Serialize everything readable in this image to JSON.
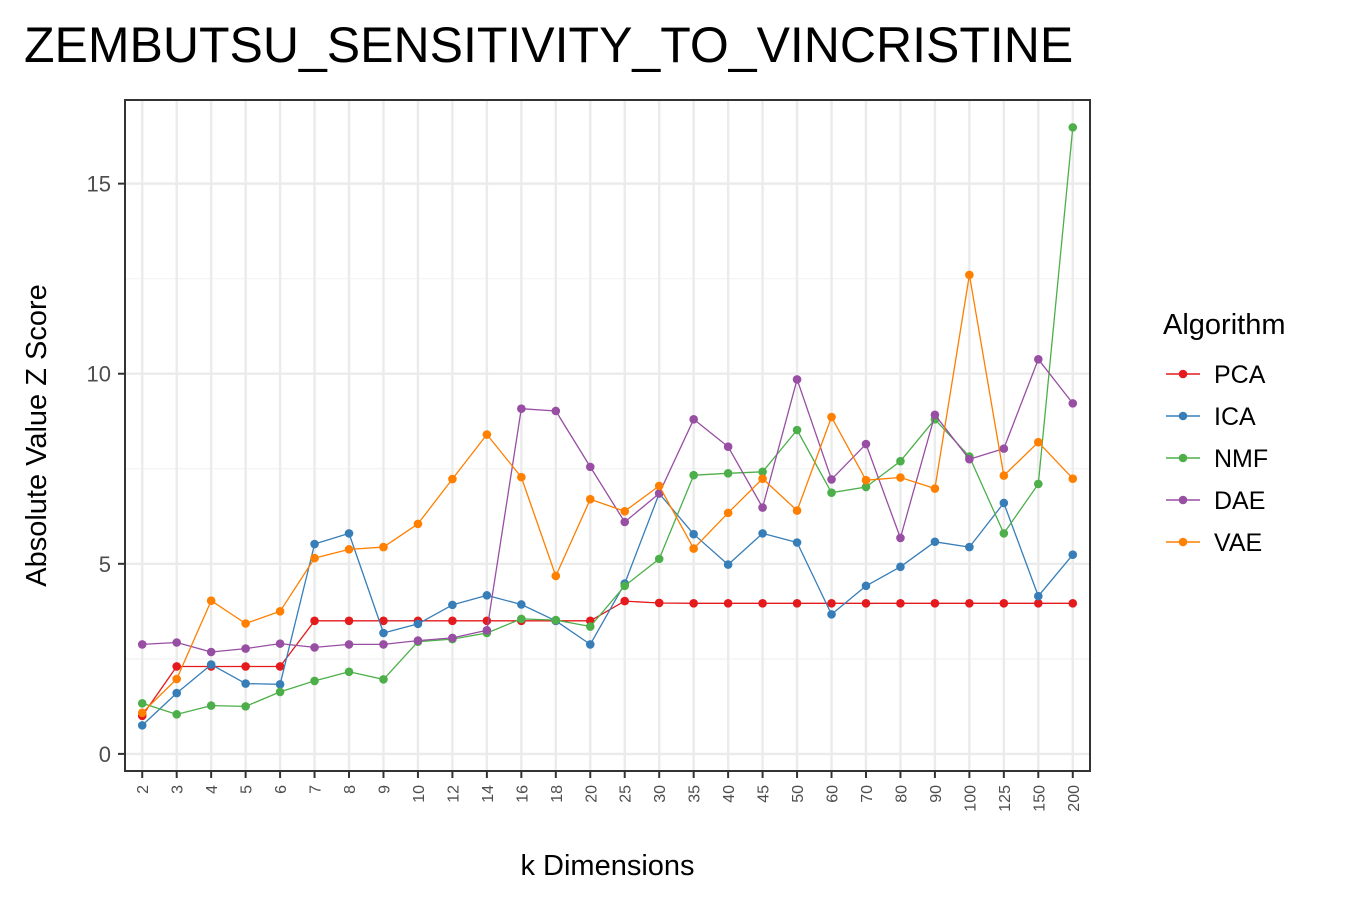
{
  "chart_data": {
    "type": "line",
    "title": "ZEMBUTSU_SENSITIVITY_TO_VINCRISTINE",
    "xlabel": "k Dimensions",
    "ylabel": "Absolute Value Z Score",
    "categories": [
      "2",
      "3",
      "4",
      "5",
      "6",
      "7",
      "8",
      "9",
      "10",
      "12",
      "14",
      "16",
      "18",
      "20",
      "25",
      "30",
      "35",
      "40",
      "45",
      "50",
      "60",
      "70",
      "80",
      "90",
      "100",
      "125",
      "150",
      "200"
    ],
    "ylim": [
      -0.45,
      17.2
    ],
    "yticks": [
      0,
      5,
      10,
      15
    ],
    "grid": true,
    "legend": {
      "title": "Algorithm",
      "position": "right"
    },
    "series": [
      {
        "name": "PCA",
        "color": "#e41a1c",
        "values": [
          1.0,
          2.3,
          2.3,
          2.3,
          2.3,
          3.5,
          3.5,
          3.5,
          3.5,
          3.5,
          3.5,
          3.5,
          3.5,
          3.5,
          4.02,
          3.97,
          3.96,
          3.96,
          3.96,
          3.96,
          3.96,
          3.96,
          3.96,
          3.96,
          3.96,
          3.96,
          3.96,
          3.96
        ]
      },
      {
        "name": "ICA",
        "color": "#377eb8",
        "values": [
          0.75,
          1.6,
          2.35,
          1.85,
          1.83,
          5.52,
          5.8,
          3.18,
          3.42,
          3.92,
          4.17,
          3.93,
          3.5,
          2.88,
          4.48,
          6.85,
          5.78,
          4.98,
          5.8,
          5.56,
          3.67,
          4.42,
          4.92,
          5.58,
          5.44,
          6.6,
          4.15,
          5.24
        ]
      },
      {
        "name": "NMF",
        "color": "#4daf4a",
        "values": [
          1.33,
          1.04,
          1.27,
          1.25,
          1.63,
          1.92,
          2.16,
          1.96,
          2.95,
          3.02,
          3.18,
          3.55,
          3.52,
          3.35,
          4.42,
          5.13,
          7.33,
          7.38,
          7.42,
          8.52,
          6.87,
          7.02,
          7.7,
          8.8,
          7.82,
          5.8,
          7.1,
          16.48
        ]
      },
      {
        "name": "DAE",
        "color": "#984ea3",
        "values": [
          2.88,
          2.93,
          2.68,
          2.77,
          2.9,
          2.8,
          2.88,
          2.88,
          2.98,
          3.05,
          3.25,
          9.08,
          9.02,
          7.55,
          6.1,
          6.85,
          8.8,
          8.08,
          6.48,
          9.85,
          7.22,
          8.15,
          5.68,
          8.92,
          7.75,
          8.03,
          10.38,
          9.22
        ]
      },
      {
        "name": "VAE",
        "color": "#ff7f00",
        "values": [
          1.08,
          1.97,
          4.03,
          3.43,
          3.75,
          5.15,
          5.38,
          5.44,
          6.05,
          7.23,
          8.4,
          7.28,
          4.68,
          6.7,
          6.38,
          7.05,
          5.4,
          6.34,
          7.24,
          6.4,
          8.86,
          7.2,
          7.27,
          6.98,
          12.6,
          7.32,
          8.2,
          7.24
        ]
      }
    ]
  }
}
